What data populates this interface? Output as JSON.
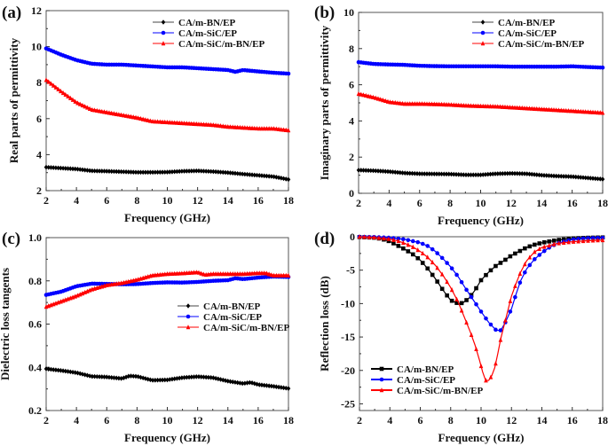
{
  "chart_data": [
    {
      "panel": "(a)",
      "type": "line",
      "title": "",
      "xlabel": "Frequency (GHz)",
      "ylabel": "Real parts of permittivity",
      "xlim": [
        2,
        18
      ],
      "ylim": [
        2,
        12
      ],
      "xticks": [
        2,
        4,
        6,
        8,
        10,
        12,
        14,
        16,
        18
      ],
      "yticks": [
        2,
        4,
        6,
        8,
        10,
        12
      ],
      "legend_position": "top-right",
      "series": [
        {
          "name": "CA/m-BN/EP",
          "color": "#000000",
          "marker": "diamond",
          "x": [
            2,
            3,
            4,
            5,
            6,
            7,
            8,
            9,
            10,
            11,
            12,
            13,
            14,
            15,
            16,
            17,
            18
          ],
          "values": [
            3.3,
            3.25,
            3.2,
            3.1,
            3.08,
            3.05,
            3.02,
            3.02,
            3.03,
            3.08,
            3.1,
            3.06,
            3.0,
            2.92,
            2.85,
            2.78,
            2.62
          ]
        },
        {
          "name": "CA/m-SiC/EP",
          "color": "#0000ff",
          "marker": "circle",
          "x": [
            2,
            3,
            4,
            5,
            6,
            7,
            8,
            9,
            10,
            11,
            12,
            13,
            14,
            14.5,
            15,
            16,
            17,
            18
          ],
          "values": [
            9.9,
            9.55,
            9.25,
            9.05,
            9.0,
            9.0,
            8.95,
            8.9,
            8.85,
            8.85,
            8.8,
            8.75,
            8.7,
            8.6,
            8.7,
            8.62,
            8.55,
            8.5
          ]
        },
        {
          "name": "CA/m-SiC/m-BN/EP",
          "color": "#ff0000",
          "marker": "triangle",
          "x": [
            2,
            3,
            4,
            5,
            6,
            7,
            8,
            9,
            10,
            11,
            12,
            13,
            14,
            15,
            16,
            17,
            18
          ],
          "values": [
            8.15,
            7.5,
            6.9,
            6.5,
            6.35,
            6.2,
            6.05,
            5.85,
            5.8,
            5.75,
            5.7,
            5.65,
            5.55,
            5.5,
            5.45,
            5.45,
            5.35
          ]
        }
      ]
    },
    {
      "panel": "(b)",
      "type": "line",
      "title": "",
      "xlabel": "Frequency (GHz)",
      "ylabel": "Imaginary parts of permittivity",
      "xlim": [
        2,
        18
      ],
      "ylim": [
        0,
        10
      ],
      "xticks": [
        2,
        4,
        6,
        8,
        10,
        12,
        14,
        16,
        18
      ],
      "yticks": [
        0,
        2,
        4,
        6,
        8,
        10
      ],
      "legend_position": "top-right",
      "series": [
        {
          "name": "CA/m-BN/EP",
          "color": "#000000",
          "marker": "diamond",
          "x": [
            2,
            3,
            4,
            5,
            6,
            7,
            8,
            9,
            10,
            11,
            12,
            13,
            14,
            15,
            16,
            17,
            18
          ],
          "values": [
            1.28,
            1.25,
            1.2,
            1.12,
            1.08,
            1.07,
            1.06,
            1.02,
            1.02,
            1.08,
            1.1,
            1.08,
            1.0,
            0.95,
            0.92,
            0.85,
            0.78
          ]
        },
        {
          "name": "CA/m-SiC/EP",
          "color": "#0000ff",
          "marker": "circle",
          "x": [
            2,
            3,
            4,
            5,
            6,
            7,
            8,
            9,
            10,
            11,
            12,
            13,
            14,
            15,
            16,
            17,
            18
          ],
          "values": [
            7.25,
            7.15,
            7.12,
            7.1,
            7.05,
            7.03,
            7.02,
            7.02,
            7.02,
            7.02,
            7.0,
            7.0,
            7.0,
            7.0,
            7.02,
            6.98,
            6.95
          ]
        },
        {
          "name": "CA/m-SiC/m-BN/EP",
          "color": "#ff0000",
          "marker": "triangle",
          "x": [
            2,
            3,
            4,
            5,
            6,
            7,
            8,
            9,
            10,
            11,
            12,
            13,
            14,
            15,
            16,
            17,
            18
          ],
          "values": [
            5.5,
            5.3,
            5.05,
            4.95,
            4.95,
            4.93,
            4.9,
            4.85,
            4.82,
            4.8,
            4.75,
            4.7,
            4.65,
            4.6,
            4.55,
            4.5,
            4.45
          ]
        }
      ]
    },
    {
      "panel": "(c)",
      "type": "line",
      "title": "",
      "xlabel": "Frequency (GHz)",
      "ylabel": "Dielectric loss tangents",
      "xlim": [
        2,
        18
      ],
      "ylim": [
        0.2,
        1.0
      ],
      "xticks": [
        2,
        4,
        6,
        8,
        10,
        12,
        14,
        16,
        18
      ],
      "yticks": [
        0.2,
        0.4,
        0.6,
        0.8,
        1.0
      ],
      "legend_position": "center-right",
      "series": [
        {
          "name": "CA/m-BN/EP",
          "color": "#000000",
          "marker": "diamond",
          "x": [
            2,
            3,
            4,
            5,
            6,
            7,
            7.5,
            8,
            9,
            10,
            11,
            12,
            13,
            14,
            15,
            15.5,
            16,
            17,
            18
          ],
          "values": [
            0.393,
            0.385,
            0.375,
            0.358,
            0.355,
            0.348,
            0.36,
            0.358,
            0.34,
            0.342,
            0.352,
            0.357,
            0.352,
            0.336,
            0.325,
            0.33,
            0.32,
            0.312,
            0.302
          ]
        },
        {
          "name": "CA/m-SiC/EP",
          "color": "#0000ff",
          "marker": "circle",
          "x": [
            2,
            3,
            4,
            5,
            6,
            7,
            8,
            9,
            10,
            11,
            12,
            13,
            14,
            14.5,
            15,
            16,
            17,
            18
          ],
          "values": [
            0.735,
            0.75,
            0.775,
            0.787,
            0.786,
            0.784,
            0.785,
            0.79,
            0.793,
            0.792,
            0.795,
            0.8,
            0.803,
            0.812,
            0.808,
            0.815,
            0.82,
            0.818
          ]
        },
        {
          "name": "CA/m-SiC/m-BN/EP",
          "color": "#ff0000",
          "marker": "triangle",
          "x": [
            2,
            3,
            4,
            5,
            6,
            7,
            8,
            9,
            10,
            11,
            12,
            12.5,
            13,
            14,
            15,
            16,
            16.5,
            17,
            18
          ],
          "values": [
            0.68,
            0.705,
            0.73,
            0.76,
            0.78,
            0.79,
            0.805,
            0.825,
            0.832,
            0.835,
            0.84,
            0.828,
            0.832,
            0.832,
            0.832,
            0.836,
            0.836,
            0.825,
            0.825
          ]
        }
      ]
    },
    {
      "panel": "(d)",
      "type": "line",
      "title": "",
      "xlabel": "Frequency (GHz)",
      "ylabel": "Reflection loss (dB)",
      "xlim": [
        2,
        18
      ],
      "ylim": [
        -26,
        0
      ],
      "xticks": [
        2,
        4,
        6,
        8,
        10,
        12,
        14,
        16,
        18
      ],
      "yticks": [
        -25,
        -20,
        -15,
        -10,
        -5,
        0
      ],
      "legend_position": "bottom-left",
      "series": [
        {
          "name": "CA/m-BN/EP",
          "color": "#000000",
          "marker": "square",
          "x": [
            2,
            3,
            3.5,
            4,
            4.5,
            5,
            5.5,
            6,
            6.5,
            7,
            7.5,
            8,
            8.5,
            8.8,
            9.2,
            9.6,
            10,
            10.5,
            11,
            11.5,
            12,
            12.5,
            13,
            13.5,
            14,
            15,
            16,
            17,
            18
          ],
          "values": [
            -0.05,
            -0.15,
            -0.35,
            -0.7,
            -1.3,
            -1.9,
            -2.6,
            -3.5,
            -4.8,
            -6.3,
            -8.0,
            -9.5,
            -10.0,
            -9.9,
            -9.2,
            -8.0,
            -6.5,
            -5.3,
            -4.3,
            -3.6,
            -2.8,
            -2.2,
            -1.6,
            -1.2,
            -0.9,
            -0.5,
            -0.25,
            -0.15,
            -0.1
          ]
        },
        {
          "name": "CA/m-SiC/EP",
          "color": "#0000ff",
          "marker": "circle",
          "x": [
            2,
            3,
            4,
            5,
            6,
            6.5,
            7,
            7.5,
            8,
            8.5,
            9,
            9.5,
            10,
            10.5,
            11,
            11.3,
            11.6,
            12,
            12.3,
            12.6,
            13,
            13.5,
            14,
            14.5,
            15,
            16,
            17,
            18
          ],
          "values": [
            0,
            -0.05,
            -0.15,
            -0.4,
            -0.9,
            -1.4,
            -2.2,
            -3.3,
            -4.5,
            -6.0,
            -7.8,
            -9.5,
            -11.2,
            -12.8,
            -14.0,
            -14.0,
            -12.8,
            -10.8,
            -8.6,
            -6.6,
            -4.8,
            -3.4,
            -2.4,
            -1.6,
            -1.0,
            -0.4,
            -0.2,
            -0.15
          ]
        },
        {
          "name": "CA/m-SiC/m-BN/EP",
          "color": "#ff0000",
          "marker": "triangle",
          "x": [
            2,
            3,
            4,
            4.5,
            5,
            5.5,
            6,
            6.5,
            7,
            7.5,
            8,
            8.5,
            9,
            9.3,
            9.6,
            9.9,
            10.1,
            10.3,
            10.5,
            10.7,
            10.9,
            11.1,
            11.3,
            11.6,
            12,
            12.3,
            12.6,
            13,
            13.5,
            14,
            15,
            16,
            17,
            18
          ],
          "values": [
            0,
            -0.1,
            -0.35,
            -0.6,
            -1.0,
            -1.5,
            -2.2,
            -3.1,
            -4.3,
            -5.8,
            -7.6,
            -9.8,
            -12.6,
            -14.3,
            -16.2,
            -18.5,
            -20.2,
            -21.5,
            -21.5,
            -20.8,
            -19.6,
            -17.5,
            -15.2,
            -12.5,
            -8.9,
            -7.0,
            -5.3,
            -3.6,
            -2.3,
            -1.6,
            -1.0,
            -0.75,
            -0.6,
            -0.5
          ]
        }
      ]
    }
  ]
}
